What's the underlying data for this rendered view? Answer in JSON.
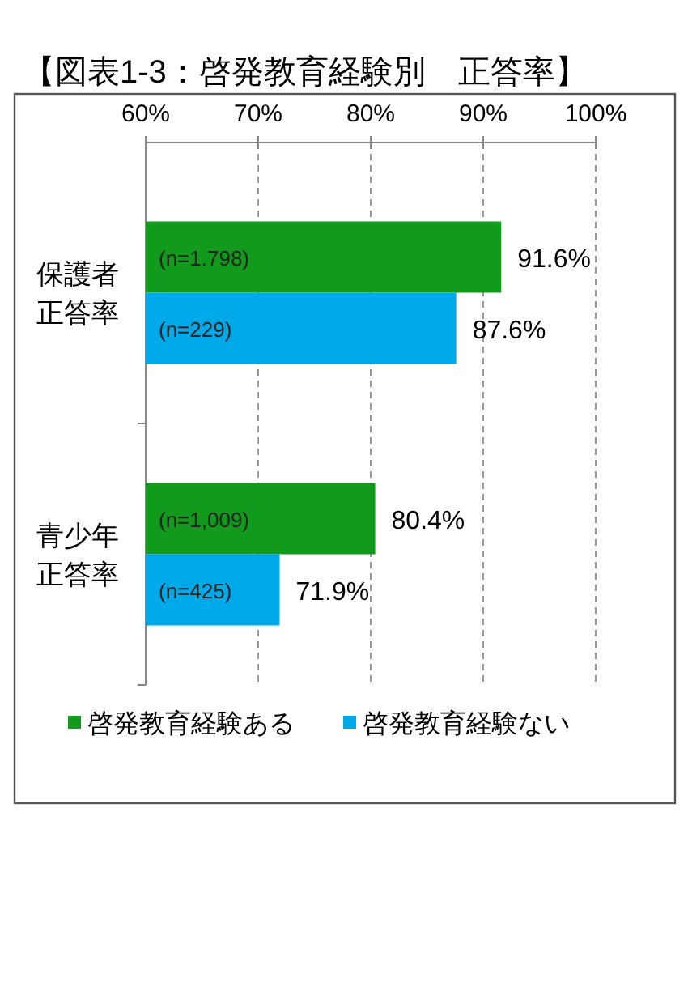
{
  "chart_data": {
    "type": "bar",
    "orientation": "horizontal",
    "title": "【図表1-3：啓発教育経験別　正答率】",
    "categories": [
      "保護者正答率",
      "青少年正答率"
    ],
    "series": [
      {
        "name": "啓発教育経験ある",
        "color": "#119a1b",
        "values": [
          91.6,
          80.4
        ],
        "value_labels": [
          "91.6%",
          "80.4%"
        ]
      },
      {
        "name": "啓発教育経験ない",
        "color": "#00aaea",
        "values": [
          87.6,
          71.9
        ],
        "value_labels": [
          "87.6%",
          "71.9%"
        ]
      }
    ],
    "xlim": [
      60,
      100
    ],
    "xticks": [
      {
        "value": 60,
        "label": "60%"
      },
      {
        "value": 70,
        "label": "70%"
      },
      {
        "value": 80,
        "label": "80%"
      },
      {
        "value": 90,
        "label": "90%"
      },
      {
        "value": 100,
        "label": "100%"
      }
    ],
    "grid": "x",
    "legend": "bottom",
    "annotations": [
      {
        "text": "(n=1.798)",
        "y": "保護者正答率"
      },
      {
        "text": "(n=229)",
        "y": "保護者正答率"
      },
      {
        "text": "(n=1,009)",
        "y": "青少年正答率"
      },
      {
        "text": "(n=425)",
        "y": "青少年正答率"
      }
    ]
  }
}
